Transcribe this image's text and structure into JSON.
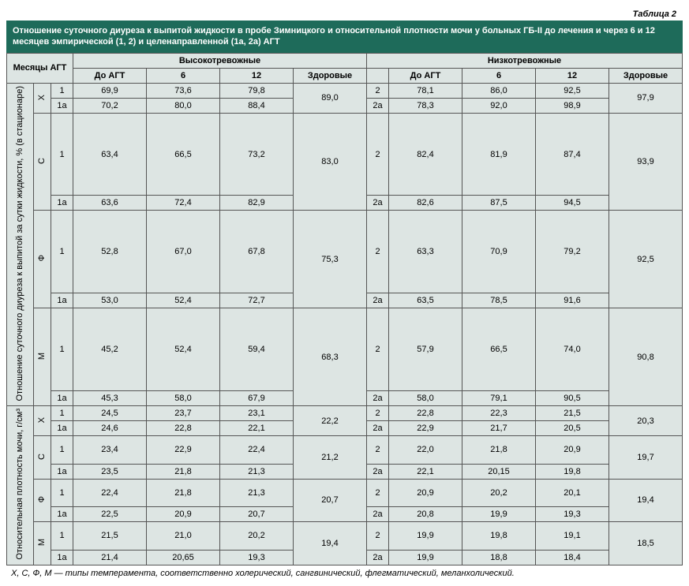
{
  "table_label": "Таблица 2",
  "caption": "Отношение суточного диуреза к выпитой жидкости в пробе Зимницкого и относительной плотности мочи у больных ГБ-II до лечения и через 6 и 12 месяцев эмпирической (1, 2) и целенаправленной (1a, 2a) АГТ",
  "header": {
    "months": "Месяцы АГТ",
    "high": "Высокотревожные",
    "low": "Низкотревожные",
    "before": "До АГТ",
    "m6": "6",
    "m12": "12",
    "healthy": "Здоровые"
  },
  "row_label_1": "Отношение суточного диуреза к выпитой за сутки жидкости, % (в стационаре)",
  "row_label_2": "Относительная плотность мочи, г/см³",
  "temper": [
    "Х",
    "С",
    "Ф",
    "М"
  ],
  "sub": {
    "a1": "1",
    "a1a": "1a",
    "a2": "2",
    "a2a": "2a"
  },
  "colors": {
    "header_bg": "#1e6b5a",
    "cell_bg": "#dde5e3",
    "border": "#555555"
  },
  "block1": [
    {
      "t": "Х",
      "r": [
        {
          "s": "1",
          "h": {
            "before": "69,9",
            "m6": "73,6",
            "m12": "79,8"
          },
          "hh": "89,0",
          "l": {
            "s": "2",
            "before": "78,1",
            "m6": "86,0",
            "m12": "92,5"
          },
          "lh": "97,9"
        },
        {
          "s": "1a",
          "h": {
            "before": "70,2",
            "m6": "80,0",
            "m12": "88,4"
          },
          "l": {
            "s": "2a",
            "before": "78,3",
            "m6": "92,0",
            "m12": "98,9"
          }
        }
      ]
    },
    {
      "t": "С",
      "r": [
        {
          "s": "1",
          "h": {
            "before": "63,4",
            "m6": "66,5",
            "m12": "73,2"
          },
          "hh": "83,0",
          "l": {
            "s": "2",
            "before": "82,4",
            "m6": "81,9",
            "m12": "87,4"
          },
          "lh": "93,9"
        },
        {
          "s": "1a",
          "h": {
            "before": "63,6",
            "m6": "72,4",
            "m12": "82,9"
          },
          "l": {
            "s": "2a",
            "before": "82,6",
            "m6": "87,5",
            "m12": "94,5"
          }
        }
      ]
    },
    {
      "t": "Ф",
      "r": [
        {
          "s": "1",
          "h": {
            "before": "52,8",
            "m6": "67,0",
            "m12": "67,8"
          },
          "hh": "75,3",
          "l": {
            "s": "2",
            "before": "63,3",
            "m6": "70,9",
            "m12": "79,2"
          },
          "lh": "92,5"
        },
        {
          "s": "1a",
          "h": {
            "before": "53,0",
            "m6": "52,4",
            "m12": "72,7"
          },
          "l": {
            "s": "2a",
            "before": "63,5",
            "m6": "78,5",
            "m12": "91,6"
          }
        }
      ]
    },
    {
      "t": "М",
      "r": [
        {
          "s": "1",
          "h": {
            "before": "45,2",
            "m6": "52,4",
            "m12": "59,4"
          },
          "hh": "68,3",
          "l": {
            "s": "2",
            "before": "57,9",
            "m6": "66,5",
            "m12": "74,0"
          },
          "lh": "90,8"
        },
        {
          "s": "1a",
          "h": {
            "before": "45,3",
            "m6": "58,0",
            "m12": "67,9"
          },
          "l": {
            "s": "2a",
            "before": "58,0",
            "m6": "79,1",
            "m12": "90,5"
          }
        }
      ]
    }
  ],
  "block2": [
    {
      "t": "Х",
      "r": [
        {
          "s": "1",
          "h": {
            "before": "24,5",
            "m6": "23,7",
            "m12": "23,1"
          },
          "hh": "22,2",
          "l": {
            "s": "2",
            "before": "22,8",
            "m6": "22,3",
            "m12": "21,5"
          },
          "lh": "20,3"
        },
        {
          "s": "1a",
          "h": {
            "before": "24,6",
            "m6": "22,8",
            "m12": "22,1"
          },
          "l": {
            "s": "2a",
            "before": "22,9",
            "m6": "21,7",
            "m12": "20,5"
          }
        }
      ]
    },
    {
      "t": "С",
      "r": [
        {
          "s": "1",
          "h": {
            "before": "23,4",
            "m6": "22,9",
            "m12": "22,4"
          },
          "hh": "21,2",
          "l": {
            "s": "2",
            "before": "22,0",
            "m6": "21,8",
            "m12": "20,9"
          },
          "lh": "19,7"
        },
        {
          "s": "1a",
          "h": {
            "before": "23,5",
            "m6": "21,8",
            "m12": "21,3"
          },
          "l": {
            "s": "2a",
            "before": "22,1",
            "m6": "20,15",
            "m12": "19,8"
          }
        }
      ]
    },
    {
      "t": "Ф",
      "r": [
        {
          "s": "1",
          "h": {
            "before": "22,4",
            "m6": "21,8",
            "m12": "21,3"
          },
          "hh": "20,7",
          "l": {
            "s": "2",
            "before": "20,9",
            "m6": "20,2",
            "m12": "20,1"
          },
          "lh": "19,4"
        },
        {
          "s": "1a",
          "h": {
            "before": "22,5",
            "m6": "20,9",
            "m12": "20,7"
          },
          "l": {
            "s": "2a",
            "before": "20,8",
            "m6": "19,9",
            "m12": "19,3"
          }
        }
      ]
    },
    {
      "t": "М",
      "r": [
        {
          "s": "1",
          "h": {
            "before": "21,5",
            "m6": "21,0",
            "m12": "20,2"
          },
          "hh": "19,4",
          "l": {
            "s": "2",
            "before": "19,9",
            "m6": "19,8",
            "m12": "19,1"
          },
          "lh": "18,5"
        },
        {
          "s": "1a",
          "h": {
            "before": "21,4",
            "m6": "20,65",
            "m12": "19,3"
          },
          "l": {
            "s": "2a",
            "before": "19,9",
            "m6": "18,8",
            "m12": "18,4"
          }
        }
      ]
    }
  ],
  "footnote": "X, С, Ф, М — типы темперамента, соответственно холерический, сангвинический, флегматический, меланхолический."
}
